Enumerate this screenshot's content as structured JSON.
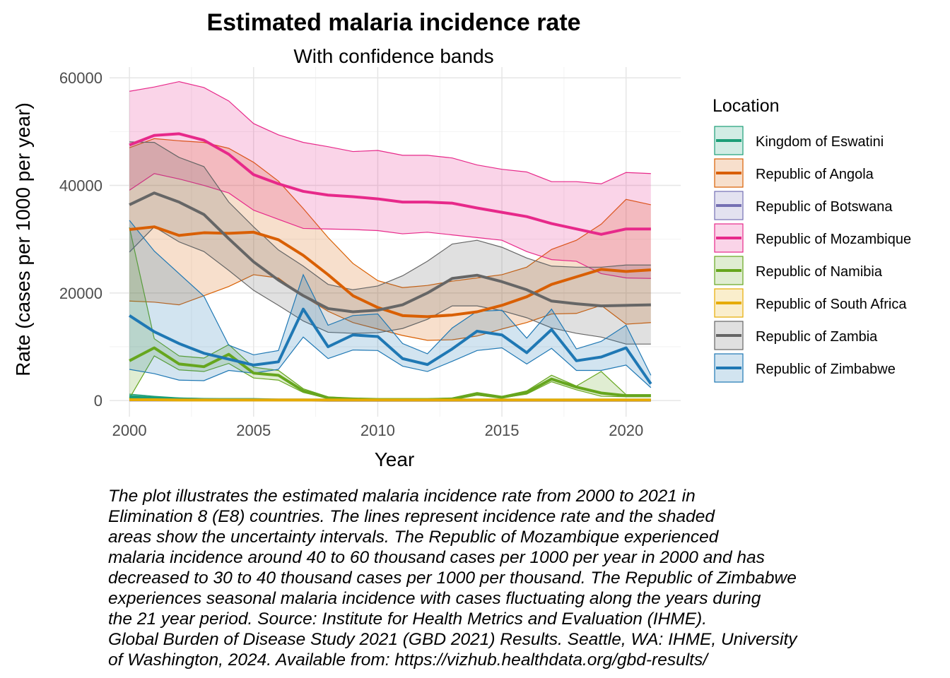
{
  "caption": "The plot illustrates the estimated malaria incidence rate from 2000 to 2021 in\nElimination 8 (E8) countries. The lines represent incidence rate and the shaded\nareas show the uncertainty intervals. The Republic of Mozambique experienced\nmalaria incidence around 40 to 60 thousand cases per 1000 per year in 2000 and has\ndecreased to 30 to 40 thousand cases per 1000 per thousand. The Republic of Zimbabwe\nexperiences seasonal malaria incidence with cases fluctuating along the years during\nthe 21 year period. Source: Institute for Health Metrics and Evaluation (IHME).\nGlobal Burden of Disease Study 2021 (GBD 2021) Results. Seattle, WA: IHME, University\nof Washington, 2024. Available from: https://vizhub.healthdata.org/gbd-results/",
  "chart_data": {
    "type": "line",
    "title": "Estimated malaria incidence rate",
    "subtitle": "With confidence bands",
    "xlabel": "Year",
    "ylabel": "Rate (cases per 1000 per year)",
    "xlim": [
      1999.2,
      2022.2
    ],
    "ylim": [
      -3000,
      62000
    ],
    "xticks": [
      2000,
      2005,
      2010,
      2015,
      2020
    ],
    "yticks": [
      0,
      20000,
      40000,
      60000
    ],
    "grid": true,
    "legend_title": "Location",
    "legend_position": "right",
    "x": [
      2000,
      2001,
      2002,
      2003,
      2004,
      2005,
      2006,
      2007,
      2008,
      2009,
      2010,
      2011,
      2012,
      2013,
      2014,
      2015,
      2016,
      2017,
      2018,
      2019,
      2020,
      2021
    ],
    "series": [
      {
        "name": "Kingdom of Eswatini",
        "color": "#1b9e77",
        "values": [
          800,
          500,
          300,
          200,
          200,
          200,
          100,
          100,
          100,
          100,
          100,
          100,
          100,
          100,
          100,
          100,
          100,
          100,
          100,
          100,
          100,
          100
        ],
        "lower": [
          500,
          300,
          200,
          100,
          100,
          100,
          100,
          0,
          0,
          0,
          0,
          0,
          0,
          0,
          0,
          0,
          0,
          -100,
          0,
          0,
          0,
          0
        ],
        "upper": [
          1200,
          800,
          500,
          400,
          300,
          300,
          200,
          200,
          200,
          200,
          200,
          200,
          200,
          200,
          200,
          200,
          200,
          200,
          200,
          200,
          200,
          200
        ]
      },
      {
        "name": "Republic of Angola",
        "color": "#d95f02",
        "values": [
          31800,
          32300,
          30700,
          31200,
          31100,
          31300,
          29900,
          27000,
          23400,
          19500,
          17300,
          15800,
          15600,
          15900,
          16500,
          17700,
          19300,
          21600,
          23000,
          24400,
          24000,
          24300
        ],
        "lower": [
          18500,
          18300,
          17800,
          19500,
          21200,
          23400,
          22800,
          19400,
          16600,
          14500,
          13300,
          12100,
          11200,
          11300,
          12000,
          13300,
          14500,
          16100,
          16200,
          17700,
          14200,
          14500
        ],
        "upper": [
          47000,
          48700,
          48300,
          48000,
          46900,
          44300,
          40800,
          35700,
          30300,
          25500,
          22300,
          21000,
          21400,
          22200,
          22800,
          23400,
          24800,
          28100,
          29800,
          32800,
          37400,
          36400
        ]
      },
      {
        "name": "Republic of Botswana",
        "color": "#7570b3",
        "values": [
          100,
          100,
          100,
          100,
          100,
          100,
          100,
          100,
          50,
          50,
          50,
          50,
          50,
          50,
          50,
          50,
          50,
          50,
          50,
          50,
          50,
          50
        ],
        "lower": [
          50,
          50,
          50,
          50,
          50,
          50,
          50,
          50,
          20,
          20,
          20,
          20,
          20,
          20,
          20,
          20,
          20,
          20,
          20,
          20,
          20,
          20
        ],
        "upper": [
          200,
          200,
          200,
          200,
          200,
          200,
          200,
          200,
          100,
          100,
          100,
          100,
          100,
          100,
          100,
          100,
          100,
          100,
          100,
          100,
          100,
          100
        ]
      },
      {
        "name": "Republic of Mozambique",
        "color": "#e7298a",
        "values": [
          47500,
          49300,
          49600,
          48400,
          45800,
          42000,
          40300,
          38900,
          38200,
          37900,
          37500,
          36900,
          36900,
          36700,
          35800,
          35000,
          34200,
          32900,
          31900,
          30900,
          31900,
          31900
        ],
        "lower": [
          39100,
          42200,
          41200,
          40000,
          38600,
          35400,
          33700,
          32000,
          31900,
          31800,
          31600,
          31000,
          31300,
          30800,
          30300,
          29800,
          27700,
          26200,
          25900,
          23600,
          22800,
          22700
        ],
        "upper": [
          57500,
          58300,
          59300,
          58200,
          55700,
          51500,
          49400,
          48000,
          47200,
          46300,
          46500,
          45600,
          45600,
          45100,
          43800,
          43000,
          42500,
          40700,
          40700,
          40300,
          42400,
          42200
        ]
      },
      {
        "name": "Republic of Namibia",
        "color": "#66a61e",
        "values": [
          7400,
          9800,
          6800,
          6300,
          8600,
          5100,
          4700,
          1800,
          500,
          300,
          200,
          200,
          200,
          300,
          1200,
          600,
          1500,
          4000,
          2500,
          1400,
          900,
          900
        ],
        "lower": [
          400,
          8300,
          5700,
          5400,
          6900,
          4200,
          3800,
          1500,
          400,
          200,
          150,
          150,
          150,
          200,
          1000,
          500,
          1200,
          3500,
          2000,
          800,
          700,
          700
        ],
        "upper": [
          32200,
          11500,
          8300,
          7900,
          10400,
          6200,
          5600,
          2200,
          700,
          400,
          300,
          300,
          300,
          500,
          1500,
          800,
          1800,
          4700,
          2700,
          5400,
          1100,
          1100
        ]
      },
      {
        "name": "Republic of South Africa",
        "color": "#e6ab02",
        "values": [
          150,
          150,
          100,
          100,
          100,
          100,
          100,
          100,
          100,
          100,
          100,
          100,
          100,
          100,
          100,
          100,
          100,
          100,
          100,
          100,
          100,
          100
        ],
        "lower": [
          50,
          50,
          50,
          50,
          50,
          50,
          50,
          50,
          50,
          50,
          50,
          50,
          50,
          50,
          50,
          50,
          50,
          50,
          50,
          50,
          50,
          50
        ],
        "upper": [
          300,
          300,
          200,
          200,
          200,
          200,
          200,
          200,
          200,
          200,
          200,
          200,
          200,
          200,
          200,
          200,
          200,
          200,
          200,
          200,
          200,
          200
        ]
      },
      {
        "name": "Republic of Zambia",
        "color": "#666666",
        "values": [
          36400,
          38600,
          36900,
          34600,
          30100,
          25800,
          22400,
          19500,
          17100,
          16500,
          16800,
          17800,
          20000,
          22700,
          23300,
          22100,
          20600,
          18500,
          18000,
          17600,
          17700,
          17800
        ],
        "lower": [
          27600,
          32300,
          29500,
          27700,
          24200,
          20500,
          17700,
          14800,
          12700,
          12500,
          12600,
          13400,
          15100,
          17600,
          17600,
          16700,
          15400,
          13500,
          12500,
          11800,
          10500,
          10500
        ],
        "upper": [
          48100,
          48000,
          45200,
          43500,
          36900,
          32300,
          28000,
          25000,
          21600,
          20600,
          21300,
          23200,
          25900,
          29100,
          29800,
          28500,
          26500,
          25000,
          24800,
          24800,
          25200,
          25200
        ]
      },
      {
        "name": "Republic of Zimbabwe",
        "color": "#1f78b4",
        "values": [
          15800,
          12800,
          10600,
          8800,
          7700,
          6600,
          7200,
          17000,
          10000,
          12200,
          11900,
          7800,
          6700,
          9600,
          12900,
          12200,
          8900,
          13200,
          7400,
          8100,
          9800,
          3100
        ],
        "lower": [
          5800,
          5000,
          3800,
          3700,
          5600,
          5100,
          5800,
          11800,
          7800,
          9400,
          9300,
          6400,
          5400,
          7300,
          9300,
          9800,
          6800,
          9700,
          5600,
          5600,
          6600,
          2400
        ],
        "upper": [
          33500,
          27800,
          23600,
          19400,
          10300,
          8500,
          9300,
          23400,
          14000,
          15800,
          16100,
          10600,
          8700,
          13500,
          16600,
          16800,
          11600,
          17000,
          9600,
          11000,
          14000,
          4700
        ]
      }
    ]
  }
}
